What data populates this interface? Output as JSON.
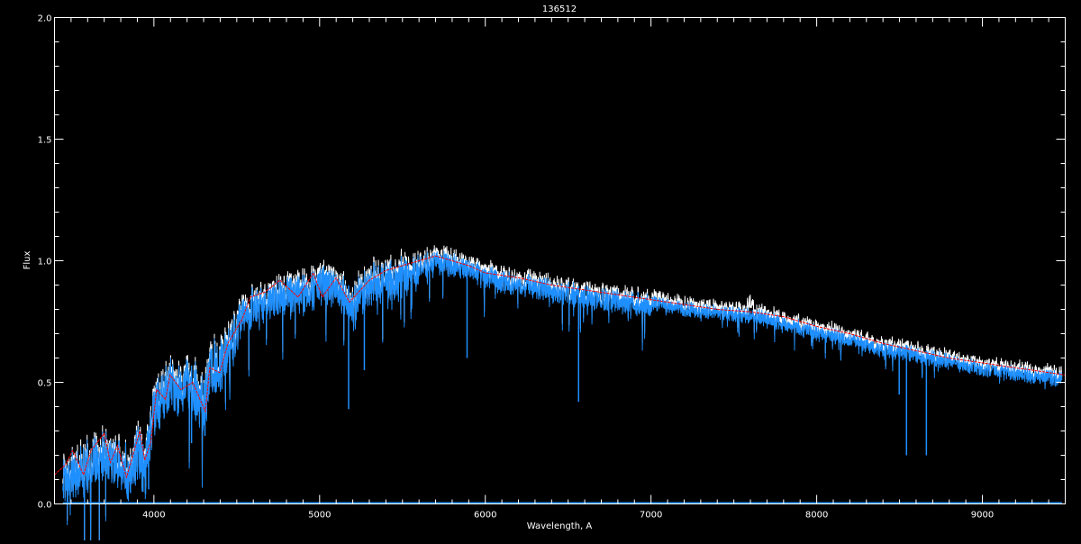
{
  "chart_data": {
    "type": "line",
    "title": "136512",
    "xlabel": "Wavelength, A",
    "ylabel": "Flux",
    "xlim": [
      3400,
      9500
    ],
    "ylim": [
      0.0,
      2.0
    ],
    "x_ticks": [
      4000,
      5000,
      6000,
      7000,
      8000,
      9000
    ],
    "x_tick_labels": [
      "4000",
      "5000",
      "6000",
      "7000",
      "8000",
      "9000"
    ],
    "y_ticks": [
      0.0,
      0.5,
      1.0,
      1.5,
      2.0
    ],
    "y_tick_labels": [
      "0.0",
      "0.5",
      "1.0",
      "1.5",
      "2.0"
    ],
    "x_minor_step": 100,
    "y_minor_step": 0.1,
    "grid": false,
    "background": "#000000",
    "series": [
      {
        "role": "observed spectrum",
        "color": "#1e8fff",
        "x": [
          3450,
          3500,
          3550,
          3600,
          3650,
          3700,
          3750,
          3800,
          3850,
          3900,
          3950,
          4000,
          4050,
          4100,
          4150,
          4200,
          4250,
          4300,
          4350,
          4400,
          4450,
          4500,
          4550,
          4600,
          4700,
          4800,
          4900,
          5000,
          5100,
          5200,
          5300,
          5400,
          5500,
          5600,
          5700,
          5800,
          5900,
          6000,
          6200,
          6400,
          6600,
          6800,
          7000,
          7200,
          7400,
          7600,
          7800,
          8000,
          8200,
          8400,
          8600,
          8800,
          9000,
          9200,
          9480
        ],
        "y": [
          0.19,
          0.22,
          0.2,
          0.24,
          0.27,
          0.31,
          0.24,
          0.27,
          0.18,
          0.3,
          0.22,
          0.5,
          0.52,
          0.57,
          0.55,
          0.58,
          0.56,
          0.48,
          0.66,
          0.64,
          0.72,
          0.8,
          0.85,
          0.88,
          0.9,
          0.93,
          0.92,
          0.96,
          0.95,
          0.88,
          0.96,
          0.99,
          1.0,
          1.02,
          1.03,
          1.02,
          1.0,
          0.97,
          0.94,
          0.92,
          0.89,
          0.87,
          0.85,
          0.83,
          0.81,
          0.8,
          0.77,
          0.73,
          0.7,
          0.66,
          0.64,
          0.61,
          0.58,
          0.56,
          0.54
        ]
      },
      {
        "role": "model",
        "color": "#ff0000",
        "x": [
          3400,
          3465,
          3510,
          3575,
          3620,
          3700,
          3737,
          3780,
          3835,
          3915,
          3945,
          3983,
          4016,
          4070,
          4098,
          4163,
          4234,
          4310,
          4337,
          4397,
          4446,
          4533,
          4582,
          4668,
          4761,
          4870,
          4962,
          5016,
          5100,
          5180,
          5300,
          5400,
          5500,
          5600,
          5700,
          5800,
          5900,
          6000,
          6200,
          6400,
          6600,
          6800,
          7000,
          7200,
          7400,
          7600,
          7800,
          8000,
          8200,
          8400,
          8600,
          8800,
          9000,
          9200,
          9500
        ],
        "y": [
          0.12,
          0.16,
          0.22,
          0.12,
          0.22,
          0.29,
          0.17,
          0.24,
          0.11,
          0.3,
          0.18,
          0.26,
          0.47,
          0.43,
          0.53,
          0.47,
          0.5,
          0.38,
          0.56,
          0.54,
          0.66,
          0.76,
          0.85,
          0.87,
          0.92,
          0.85,
          0.95,
          0.85,
          0.93,
          0.83,
          0.92,
          0.96,
          0.98,
          1.0,
          1.02,
          1.0,
          0.98,
          0.95,
          0.93,
          0.9,
          0.88,
          0.86,
          0.84,
          0.82,
          0.8,
          0.79,
          0.77,
          0.73,
          0.7,
          0.66,
          0.63,
          0.6,
          0.58,
          0.56,
          0.53
        ]
      }
    ],
    "absorption_lines": [
      {
        "x": 3934,
        "y": 0.05
      },
      {
        "x": 3968,
        "y": 0.06
      },
      {
        "x": 4227,
        "y": 0.25
      },
      {
        "x": 4308,
        "y": 0.28
      },
      {
        "x": 5175,
        "y": 0.39
      },
      {
        "x": 5270,
        "y": 0.55
      },
      {
        "x": 5890,
        "y": 0.6
      },
      {
        "x": 6563,
        "y": 0.42
      },
      {
        "x": 8498,
        "y": 0.45
      },
      {
        "x": 8542,
        "y": 0.2
      },
      {
        "x": 8662,
        "y": 0.2
      }
    ]
  }
}
